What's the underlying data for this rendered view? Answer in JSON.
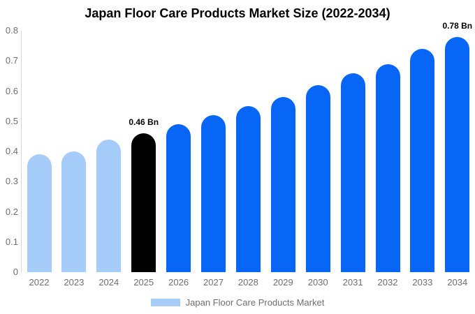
{
  "title": "Japan Floor Care Products Market Size (2022-2034)",
  "chart_data": {
    "type": "bar",
    "categories": [
      "2022",
      "2023",
      "2024",
      "2025",
      "2026",
      "2027",
      "2028",
      "2029",
      "2030",
      "2031",
      "2032",
      "2033",
      "2034"
    ],
    "values": [
      0.39,
      0.4,
      0.44,
      0.46,
      0.49,
      0.52,
      0.55,
      0.58,
      0.62,
      0.66,
      0.69,
      0.74,
      0.78
    ],
    "unit": "Bn",
    "title": "Japan Floor Care Products Market Size (2022-2034)",
    "xlabel": "",
    "ylabel": "",
    "ylim": [
      0,
      0.8
    ],
    "yticks": [
      {
        "value": 0.0,
        "label": "0"
      },
      {
        "value": 0.1,
        "label": "0.1"
      },
      {
        "value": 0.2,
        "label": "0.2"
      },
      {
        "value": 0.3,
        "label": "0.3"
      },
      {
        "value": 0.4,
        "label": "0.4"
      },
      {
        "value": 0.5,
        "label": "0.5"
      },
      {
        "value": 0.6,
        "label": "0.6"
      },
      {
        "value": 0.7,
        "label": "0.7"
      },
      {
        "value": 0.8,
        "label": "0.8"
      }
    ],
    "grid": false,
    "legend_position": "bottom",
    "bar_colors": [
      "#a6cdfa",
      "#a6cdfa",
      "#a6cdfa",
      "#000000",
      "#0766f6",
      "#0766f6",
      "#0766f6",
      "#0766f6",
      "#0766f6",
      "#0766f6",
      "#0766f6",
      "#0766f6",
      "#0766f6"
    ],
    "annotations": [
      {
        "index": 3,
        "text": "0.46 Bn"
      },
      {
        "index": 12,
        "text": "0.78 Bn"
      }
    ],
    "legend": [
      {
        "label": "Japan Floor Care Products Market",
        "color": "#a6cdfa"
      }
    ]
  },
  "colors": {
    "historical_bar": "#a6cdfa",
    "highlight_bar": "#000000",
    "forecast_bar": "#0766f6",
    "axis_line": "#d9d9d9",
    "tick_text": "#6e6e6e",
    "title_text": "#000000",
    "annotation_text": "#000000",
    "background": "#ffffff"
  }
}
